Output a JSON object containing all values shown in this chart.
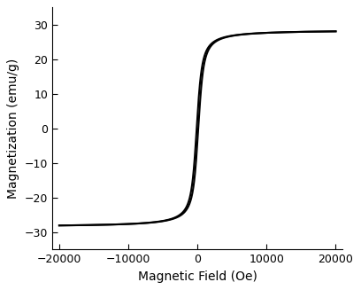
{
  "xlabel": "Magnetic Field (Oe)",
  "ylabel": "Magnetization (emu/g)",
  "xlim": [
    -21000,
    21000
  ],
  "ylim": [
    -35,
    35
  ],
  "xticks": [
    -20000,
    -10000,
    0,
    10000,
    20000
  ],
  "yticks": [
    -30,
    -20,
    -10,
    0,
    10,
    20,
    30
  ],
  "Ms": 28.5,
  "Hc": 120,
  "a_langevin": 300,
  "line_color": "#000000",
  "line_width": 1.5,
  "bg_color": "#ffffff",
  "fig_width": 4.08,
  "fig_height": 3.27,
  "dpi": 100
}
